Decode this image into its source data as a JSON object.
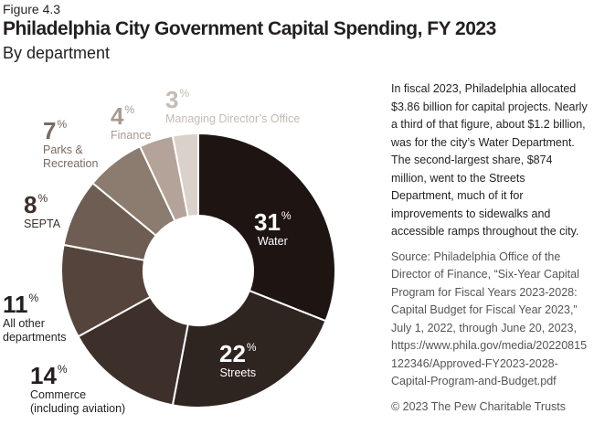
{
  "figure_label": "Figure 4.3",
  "chart_data": {
    "type": "donut",
    "title": "Philadelphia City Government Capital Spending, FY 2023",
    "subtitle": "By department",
    "categories": [
      "Water",
      "Streets",
      "Commerce\n(including aviation)",
      "All other\ndepartments",
      "SEPTA",
      "Parks &\nRecreation",
      "Finance",
      "Managing Director’s Office"
    ],
    "values": [
      31,
      22,
      14,
      11,
      8,
      7,
      4,
      3
    ],
    "value_unit": "%",
    "colors": [
      "#1e1512",
      "#2e2420",
      "#3d302a",
      "#54443b",
      "#6e5d52",
      "#8c7b6f",
      "#b3a398",
      "#d9d1ca"
    ]
  },
  "sidebar": {
    "description": "In fiscal 2023, Philadelphia allocated $3.86 billion for capital projects. Nearly a third of that figure, about $1.2 billion, was for the city’s Water Department. The second-largest share, $874 million, went to the Streets Department, much of it for improvements to sidewalks and accessible ramps throughout the city.",
    "source": "Source: Philadelphia Office of the Director of Finance, “Six-Year Capital Program for Fiscal Years 2023-2028: Capital Budget for Fiscal Year 2023,” July 1, 2022, through June 20, 2023, https://www.phila.gov/media/20220815122346/Approved-FY2023-2028-Capital-Program-and-Budget.pdf",
    "copyright": "© 2023 The Pew Charitable Trusts"
  }
}
